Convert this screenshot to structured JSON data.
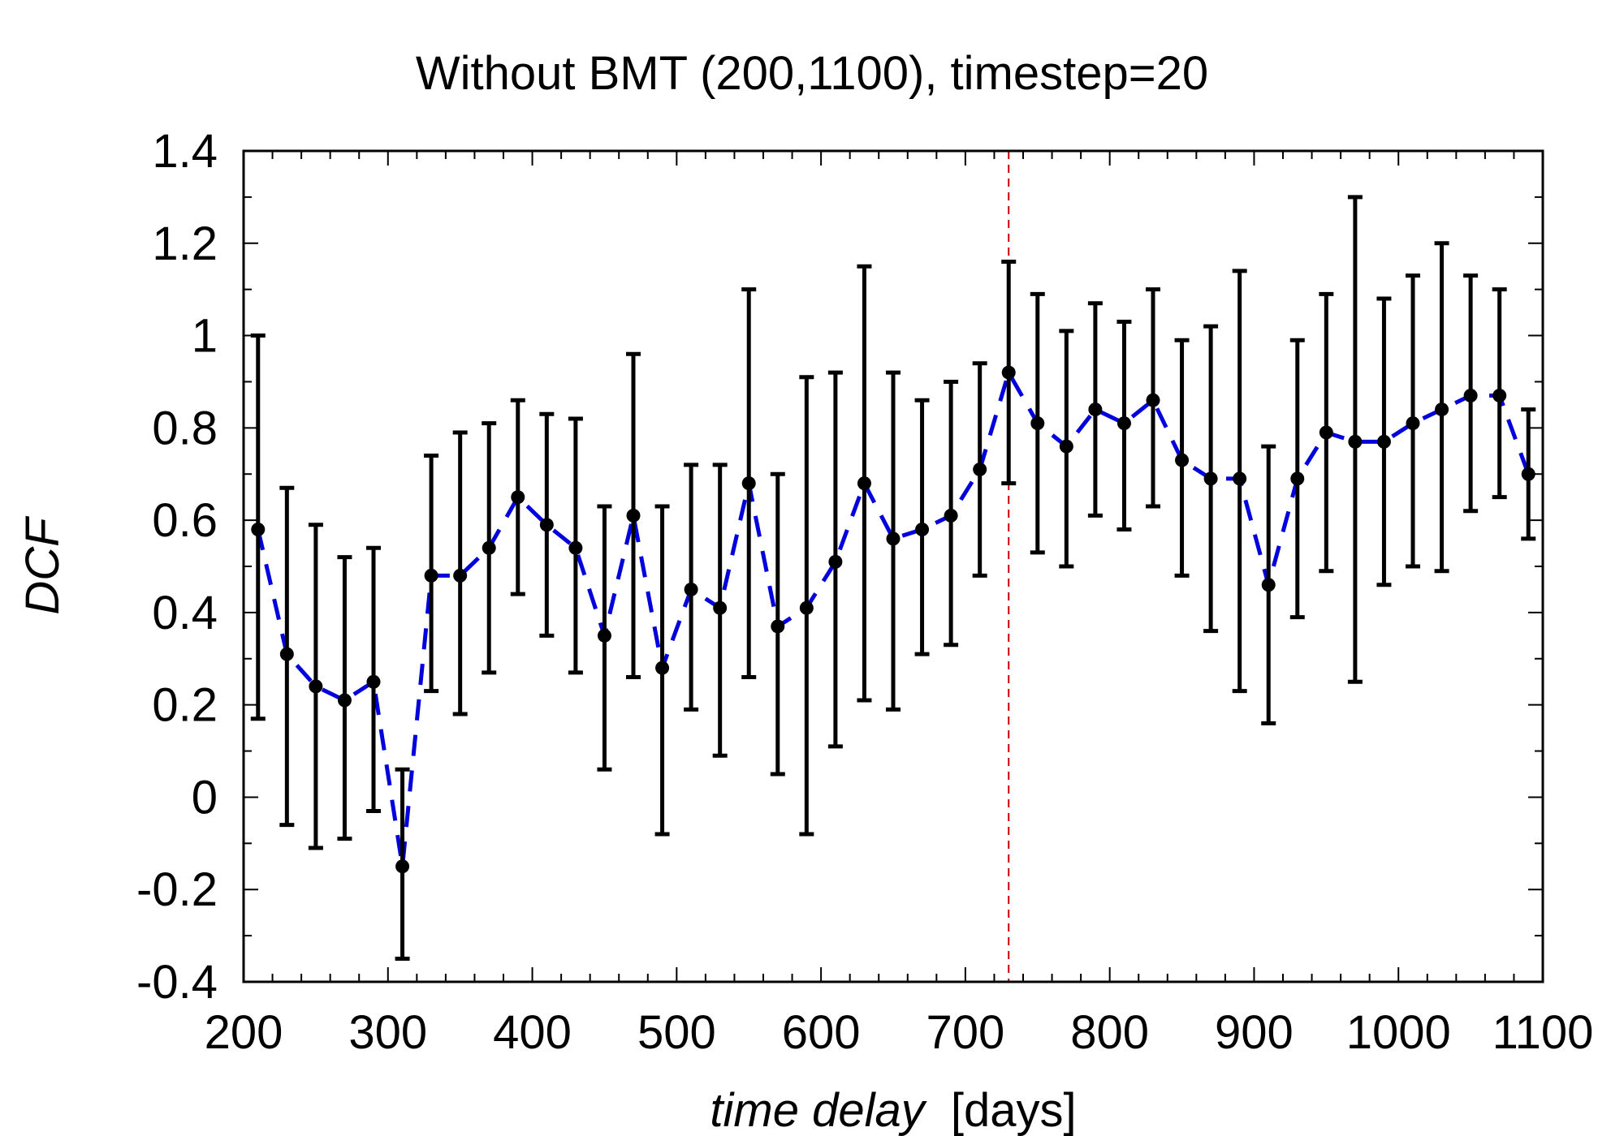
{
  "chart_data": {
    "type": "scatter",
    "title": "Without BMT (200,1100), timestep=20",
    "xlabel_italic": "time delay",
    "xlabel_units": "[days]",
    "ylabel": "DCF",
    "xlim": [
      200,
      1100
    ],
    "ylim": [
      -0.4,
      1.4
    ],
    "xticks": [
      200,
      300,
      400,
      500,
      600,
      700,
      800,
      900,
      1000,
      1100
    ],
    "xtick_labels": [
      "200",
      "300",
      "400",
      "500",
      "600",
      "700",
      "800",
      "900",
      "1000",
      "1100"
    ],
    "yticks": [
      -0.4,
      -0.2,
      0,
      0.2,
      0.4,
      0.6,
      0.8,
      1.0,
      1.2,
      1.4
    ],
    "ytick_labels": [
      "-0.4",
      "-0.2",
      "0",
      "0.2",
      "0.4",
      "0.6",
      "0.8",
      "1",
      "1.2",
      "1.4"
    ],
    "grid": false,
    "vertical_marker": {
      "x": 730,
      "color": "#cc0000",
      "style": "dashed"
    },
    "series": [
      {
        "name": "DCF",
        "marker_color": "#000000",
        "line_color": "#0000dd",
        "line_style": "dashed",
        "x": [
          210,
          230,
          250,
          270,
          290,
          310,
          330,
          350,
          370,
          390,
          410,
          430,
          450,
          470,
          490,
          510,
          530,
          550,
          570,
          590,
          610,
          630,
          650,
          670,
          690,
          710,
          730,
          750,
          770,
          790,
          810,
          830,
          850,
          870,
          890,
          910,
          930,
          950,
          970,
          990,
          1010,
          1030,
          1050,
          1070,
          1090
        ],
        "y": [
          0.58,
          0.31,
          0.24,
          0.21,
          0.25,
          -0.15,
          0.48,
          0.48,
          0.54,
          0.65,
          0.59,
          0.54,
          0.35,
          0.61,
          0.28,
          0.45,
          0.41,
          0.68,
          0.37,
          0.41,
          0.51,
          0.68,
          0.56,
          0.58,
          0.61,
          0.71,
          0.92,
          0.81,
          0.76,
          0.84,
          0.81,
          0.86,
          0.73,
          0.69,
          0.69,
          0.46,
          0.69,
          0.79,
          0.77,
          0.77,
          0.81,
          0.84,
          0.87,
          0.87,
          0.7
        ],
        "y_err_low": [
          0.17,
          -0.06,
          -0.11,
          -0.09,
          -0.03,
          -0.35,
          0.23,
          0.18,
          0.27,
          0.44,
          0.35,
          0.27,
          0.06,
          0.26,
          -0.08,
          0.19,
          0.09,
          0.26,
          0.05,
          -0.08,
          0.11,
          0.21,
          0.19,
          0.31,
          0.33,
          0.48,
          0.68,
          0.53,
          0.5,
          0.61,
          0.58,
          0.63,
          0.48,
          0.36,
          0.23,
          0.16,
          0.39,
          0.49,
          0.25,
          0.46,
          0.5,
          0.49,
          0.62,
          0.65,
          0.56
        ],
        "y_err_high": [
          1.0,
          0.67,
          0.59,
          0.52,
          0.54,
          0.06,
          0.74,
          0.79,
          0.81,
          0.86,
          0.83,
          0.82,
          0.63,
          0.96,
          0.63,
          0.72,
          0.72,
          1.1,
          0.7,
          0.91,
          0.92,
          1.15,
          0.92,
          0.86,
          0.9,
          0.94,
          1.16,
          1.09,
          1.01,
          1.07,
          1.03,
          1.1,
          0.99,
          1.02,
          1.14,
          0.76,
          0.99,
          1.09,
          1.3,
          1.08,
          1.13,
          1.2,
          1.13,
          1.1,
          0.84
        ]
      }
    ]
  }
}
